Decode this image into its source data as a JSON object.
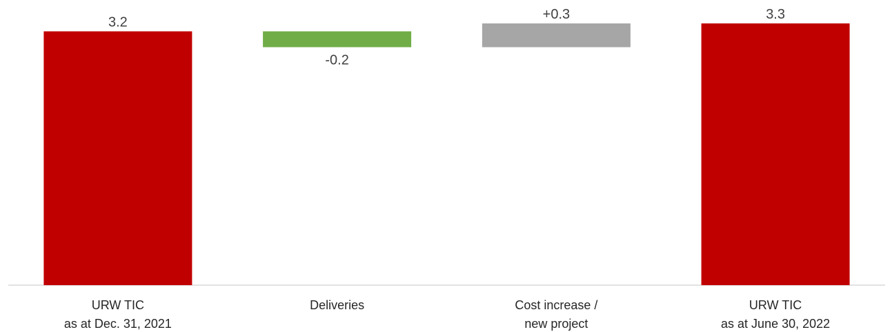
{
  "chart_data": {
    "type": "bar",
    "subtype": "waterfall",
    "categories": [
      [
        "URW TIC",
        "as at Dec. 31, 2021"
      ],
      [
        "Deliveries"
      ],
      [
        "Cost increase /",
        "new project"
      ],
      [
        "URW TIC",
        "as at June 30, 2022"
      ]
    ],
    "bars": [
      {
        "kind": "total",
        "start": 0,
        "end": 3.2,
        "label": "3.2",
        "color": "#c00000"
      },
      {
        "kind": "delta",
        "start": 3.2,
        "end": 3.0,
        "label": "-0.2",
        "color": "#70ad47"
      },
      {
        "kind": "delta",
        "start": 3.0,
        "end": 3.3,
        "label": "+0.3",
        "color": "#a6a6a6"
      },
      {
        "kind": "total",
        "start": 0,
        "end": 3.3,
        "label": "3.3",
        "color": "#c00000"
      }
    ],
    "ylim": [
      0,
      3.3
    ],
    "grid": false,
    "legend": "none",
    "axis_color": "#d9d9d9"
  }
}
